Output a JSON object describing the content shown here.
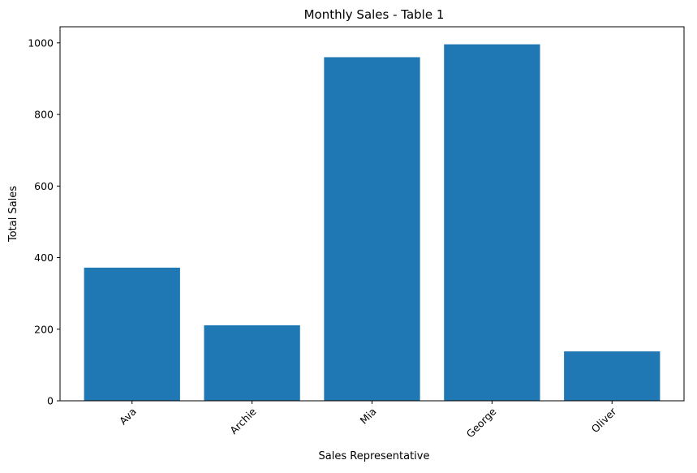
{
  "chart_data": {
    "type": "bar",
    "title": "Monthly Sales - Table 1",
    "xlabel": "Sales Representative",
    "ylabel": "Total Sales",
    "categories": [
      "Ava",
      "Archie",
      "Mia",
      "George",
      "Oliver"
    ],
    "values": [
      372,
      211,
      960,
      996,
      138
    ],
    "ylim": [
      0,
      1045
    ],
    "yticks": [
      0,
      200,
      400,
      600,
      800,
      1000
    ],
    "grid": false,
    "legend": "none",
    "bar_color": "#1f77b4",
    "xtick_rotation_deg": 45
  }
}
